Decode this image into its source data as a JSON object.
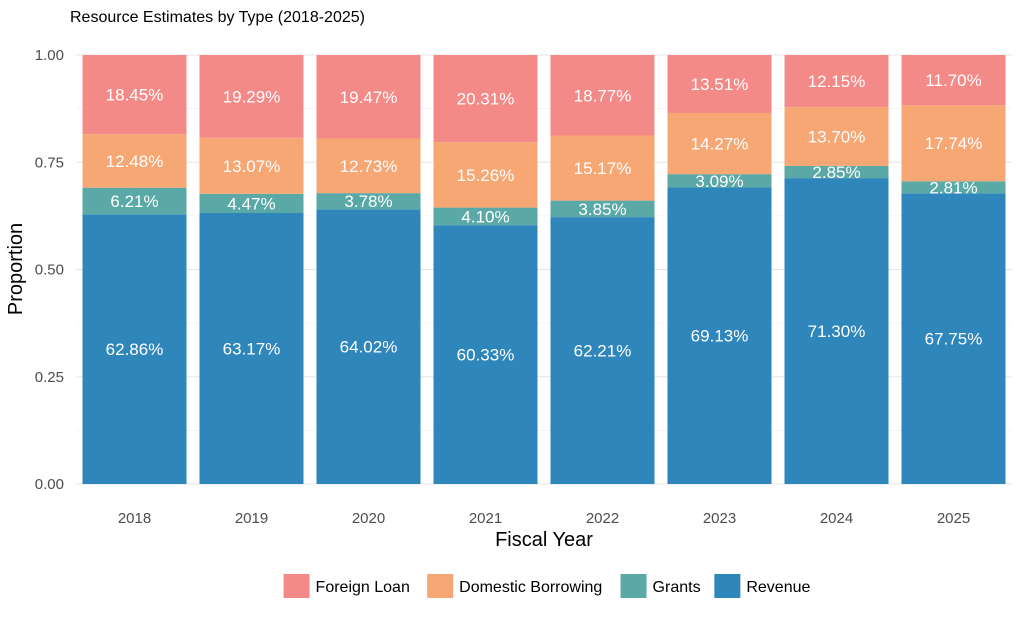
{
  "chart_data": {
    "type": "bar",
    "stacked": true,
    "title": "Resource Estimates by Type (2018-2025)",
    "xlabel": "Fiscal Year",
    "ylabel": "Proportion",
    "ylim": [
      0,
      1
    ],
    "yticks": [
      "0.00",
      "0.25",
      "0.50",
      "0.75",
      "1.00"
    ],
    "grid": true,
    "legend_position": "bottom",
    "categories": [
      "2018",
      "2019",
      "2020",
      "2021",
      "2022",
      "2023",
      "2024",
      "2025"
    ],
    "series": [
      {
        "name": "Revenue",
        "color": "#2E86BB",
        "values": [
          0.6286,
          0.6317,
          0.6402,
          0.6033,
          0.6221,
          0.6913,
          0.713,
          0.6775
        ],
        "labels": [
          "62.86%",
          "63.17%",
          "64.02%",
          "60.33%",
          "62.21%",
          "69.13%",
          "71.30%",
          "67.75%"
        ]
      },
      {
        "name": "Grants",
        "color": "#5AA9A6",
        "values": [
          0.0621,
          0.0447,
          0.0378,
          0.041,
          0.0385,
          0.0309,
          0.0285,
          0.0281
        ],
        "labels": [
          "6.21%",
          "4.47%",
          "3.78%",
          "4.10%",
          "3.85%",
          "3.09%",
          "2.85%",
          "2.81%"
        ]
      },
      {
        "name": "Domestic Borrowing",
        "color": "#F7A774",
        "values": [
          0.1248,
          0.1307,
          0.1273,
          0.1526,
          0.1517,
          0.1427,
          0.137,
          0.1774
        ],
        "labels": [
          "12.48%",
          "13.07%",
          "12.73%",
          "15.26%",
          "15.17%",
          "14.27%",
          "13.70%",
          "17.74%"
        ]
      },
      {
        "name": "Foreign Loan",
        "color": "#F48A88",
        "values": [
          0.1845,
          0.1929,
          0.1947,
          0.2031,
          0.1877,
          0.1351,
          0.1215,
          0.117
        ],
        "labels": [
          "18.45%",
          "19.29%",
          "19.47%",
          "20.31%",
          "18.77%",
          "13.51%",
          "12.15%",
          "11.70%"
        ]
      }
    ],
    "legend": [
      "Foreign Loan",
      "Domestic Borrowing",
      "Grants",
      "Revenue"
    ]
  }
}
